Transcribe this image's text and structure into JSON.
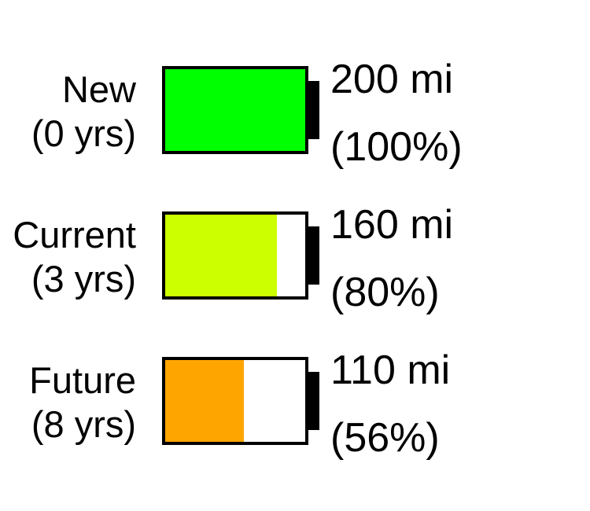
{
  "chart_data": {
    "type": "bar",
    "categories": [
      "New (0 yrs)",
      "Current (3 yrs)",
      "Future (8 yrs)"
    ],
    "rows": [
      {
        "label_line1": "New",
        "label_line2": "(0 yrs)",
        "range_text": "200 mi",
        "percent_text": "(100%)",
        "range_mi": 200,
        "fraction": 1.0,
        "color": "#00ff00"
      },
      {
        "label_line1": "Current",
        "label_line2": "(3 yrs)",
        "range_text": "160 mi",
        "percent_text": "(80%)",
        "range_mi": 160,
        "fraction": 0.8,
        "color": "#ccff00"
      },
      {
        "label_line1": "Future",
        "label_line2": "(8 yrs)",
        "range_text": "110 mi",
        "percent_text": "(56%)",
        "range_mi": 110,
        "fraction": 0.56,
        "color": "#ffa500"
      }
    ],
    "legend": "none",
    "grid": false
  }
}
